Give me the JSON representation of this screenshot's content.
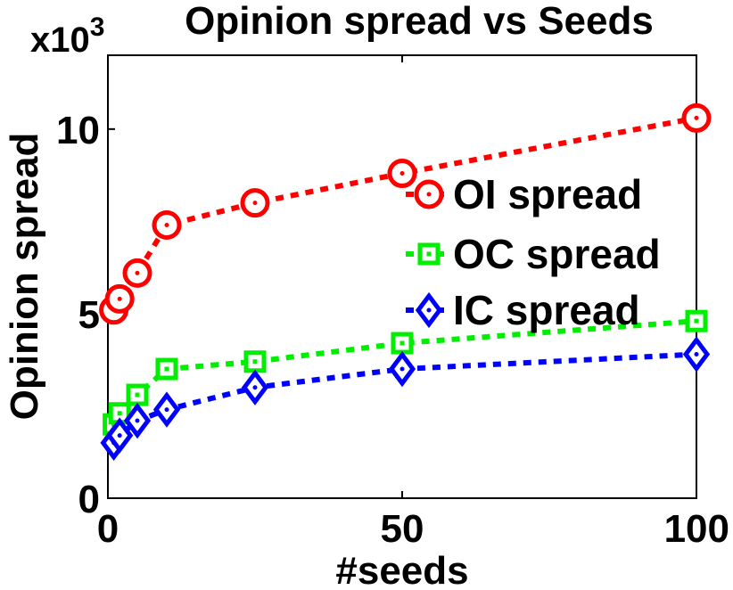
{
  "chart_data": {
    "type": "line",
    "title": "Opinion spread vs Seeds",
    "xlabel": "#seeds",
    "ylabel": "Opinion spread",
    "y_multiplier": "x10",
    "y_multiplier_exp": "3",
    "xlim": [
      0,
      100
    ],
    "ylim": [
      0,
      12
    ],
    "xticks": [
      0,
      50,
      100
    ],
    "xtick_labels": [
      "0",
      "50",
      "100"
    ],
    "yticks": [
      0,
      5,
      10
    ],
    "ytick_labels": [
      "0",
      "5",
      "10"
    ],
    "grid": false,
    "legend_position": "right",
    "series": [
      {
        "name": "OI spread",
        "color": "#ff0000",
        "marker": "circle",
        "x": [
          1,
          2,
          5,
          10,
          25,
          50,
          100
        ],
        "y": [
          5.1,
          5.4,
          6.1,
          7.4,
          8.0,
          8.8,
          10.3
        ]
      },
      {
        "name": "OC spread",
        "color": "#00ee00",
        "marker": "square",
        "x": [
          1,
          2,
          5,
          10,
          25,
          50,
          100
        ],
        "y": [
          2.0,
          2.3,
          2.8,
          3.5,
          3.7,
          4.2,
          4.8
        ]
      },
      {
        "name": "IC spread",
        "color": "#0000ff",
        "marker": "diamond",
        "x": [
          1,
          2,
          5,
          10,
          25,
          50,
          100
        ],
        "y": [
          1.5,
          1.7,
          2.1,
          2.4,
          3.0,
          3.5,
          3.9
        ]
      }
    ]
  }
}
